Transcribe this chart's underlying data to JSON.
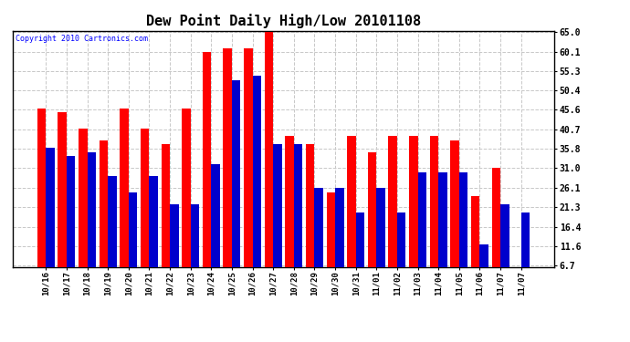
{
  "title": "Dew Point Daily High/Low 20101108",
  "copyright": "Copyright 2010 Cartronics.com",
  "categories": [
    "10/16",
    "10/17",
    "10/18",
    "10/19",
    "10/20",
    "10/21",
    "10/22",
    "10/23",
    "10/24",
    "10/25",
    "10/26",
    "10/27",
    "10/28",
    "10/29",
    "10/30",
    "10/31",
    "11/01",
    "11/02",
    "11/03",
    "11/04",
    "11/05",
    "11/06",
    "11/07",
    "11/07"
  ],
  "highs": [
    46,
    45,
    41,
    38,
    46,
    41,
    37,
    46,
    60,
    61,
    61,
    65,
    39,
    37,
    25,
    39,
    35,
    39,
    39,
    39,
    38,
    24,
    31,
    0
  ],
  "lows": [
    36,
    34,
    35,
    29,
    25,
    29,
    22,
    22,
    32,
    53,
    54,
    37,
    37,
    26,
    26,
    20,
    26,
    20,
    30,
    30,
    30,
    12,
    22,
    20
  ],
  "yticks": [
    6.7,
    11.6,
    16.4,
    21.3,
    26.1,
    31.0,
    35.8,
    40.7,
    45.6,
    50.4,
    55.3,
    60.1,
    65.0
  ],
  "ymin": 6.7,
  "ymax": 65.0,
  "bar_color_high": "#ff0000",
  "bar_color_low": "#0000cc",
  "background_color": "#ffffff",
  "grid_color": "#c8c8c8"
}
